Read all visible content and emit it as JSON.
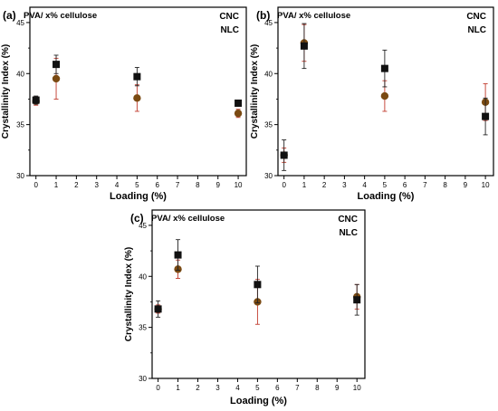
{
  "colors": {
    "cnc": "#111111",
    "nlc": "#7a4a12",
    "err_cnc": "#222222",
    "err_nlc": "#c0392b"
  },
  "chart_data": [
    {
      "type": "scatter",
      "panel_label": "(a)",
      "title": "PVA/ x% cellulose",
      "xlabel": "Loading (%)",
      "ylabel": "Crystallinity Index (%)",
      "xlim": [
        -0.3,
        10.4
      ],
      "ylim": [
        30,
        46.5
      ],
      "xticks": [
        0,
        1,
        2,
        3,
        4,
        5,
        6,
        7,
        8,
        9,
        10
      ],
      "yticks": [
        30,
        35,
        40,
        45
      ],
      "legend_position": "top-right",
      "series": [
        {
          "name": "CNC",
          "marker": "square",
          "x": [
            0,
            1,
            5,
            10
          ],
          "y": [
            37.4,
            40.9,
            39.7,
            37.1
          ],
          "err": [
            0.4,
            0.9,
            0.9,
            0.3
          ]
        },
        {
          "name": "NLC",
          "marker": "circle",
          "x": [
            0,
            1,
            5,
            10
          ],
          "y": [
            37.3,
            39.5,
            37.6,
            36.1
          ],
          "err": [
            0.4,
            2.0,
            1.3,
            0.4
          ]
        }
      ]
    },
    {
      "type": "scatter",
      "panel_label": "(b)",
      "title": "PVA/ x% cellulose",
      "xlabel": "Loading (%)",
      "ylabel": "Crystallinity Index (%)",
      "xlim": [
        -0.3,
        10.4
      ],
      "ylim": [
        30,
        46.5
      ],
      "xticks": [
        0,
        1,
        2,
        3,
        4,
        5,
        6,
        7,
        8,
        9,
        10
      ],
      "yticks": [
        30,
        35,
        40,
        45
      ],
      "legend_position": "top-right",
      "series": [
        {
          "name": "CNC",
          "marker": "square",
          "x": [
            0,
            1,
            5,
            10
          ],
          "y": [
            32.0,
            42.7,
            40.5,
            35.8
          ],
          "err": [
            1.5,
            2.2,
            1.8,
            1.8
          ]
        },
        {
          "name": "NLC",
          "marker": "circle",
          "x": [
            0,
            1,
            5,
            10
          ],
          "y": [
            32.0,
            43.0,
            37.8,
            37.2
          ],
          "err": [
            0.7,
            1.8,
            1.5,
            1.8
          ]
        }
      ]
    },
    {
      "type": "scatter",
      "panel_label": "(c)",
      "title": "PVA/ x% cellulose",
      "xlabel": "Loading (%)",
      "ylabel": "Crystallinity Index (%)",
      "xlim": [
        -0.3,
        10.4
      ],
      "ylim": [
        30,
        46.5
      ],
      "xticks": [
        0,
        1,
        2,
        3,
        4,
        5,
        6,
        7,
        8,
        9,
        10
      ],
      "yticks": [
        30,
        35,
        40,
        45
      ],
      "legend_position": "top-right",
      "series": [
        {
          "name": "CNC",
          "marker": "square",
          "x": [
            0,
            1,
            5,
            10
          ],
          "y": [
            36.8,
            42.1,
            39.2,
            37.7
          ],
          "err": [
            0.8,
            1.5,
            1.8,
            1.5
          ]
        },
        {
          "name": "NLC",
          "marker": "circle",
          "x": [
            0,
            1,
            5,
            10
          ],
          "y": [
            36.8,
            40.7,
            37.5,
            38.0
          ],
          "err": [
            0.4,
            0.9,
            2.2,
            1.2
          ]
        }
      ]
    }
  ]
}
